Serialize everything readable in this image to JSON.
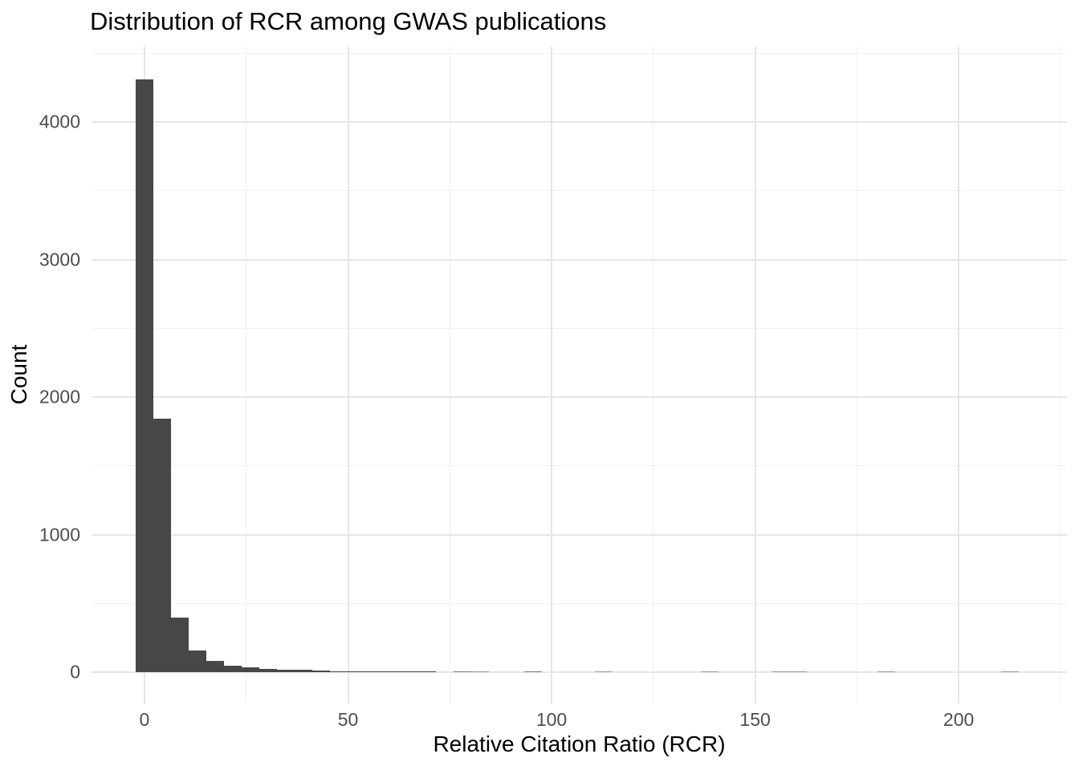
{
  "chart_data": {
    "type": "bar",
    "variant": "histogram",
    "title": "Distribution of RCR among GWAS publications",
    "xlabel": "Relative Citation Ratio (RCR)",
    "ylabel": "Count",
    "legend": "none",
    "grid": true,
    "bin_width": 4.34,
    "bins": [
      {
        "x": 0,
        "count": 4310
      },
      {
        "x": 4.34,
        "count": 1845
      },
      {
        "x": 8.68,
        "count": 400
      },
      {
        "x": 13.02,
        "count": 160
      },
      {
        "x": 17.36,
        "count": 80
      },
      {
        "x": 21.7,
        "count": 45
      },
      {
        "x": 26.04,
        "count": 33
      },
      {
        "x": 30.38,
        "count": 25
      },
      {
        "x": 34.72,
        "count": 20
      },
      {
        "x": 39.06,
        "count": 16
      },
      {
        "x": 43.4,
        "count": 12
      },
      {
        "x": 47.74,
        "count": 9
      },
      {
        "x": 52.08,
        "count": 7
      },
      {
        "x": 56.42,
        "count": 6
      },
      {
        "x": 60.76,
        "count": 5
      },
      {
        "x": 65.1,
        "count": 4
      },
      {
        "x": 69.44,
        "count": 3
      },
      {
        "x": 78.12,
        "count": 2
      },
      {
        "x": 82.46,
        "count": 1
      },
      {
        "x": 95.48,
        "count": 2
      },
      {
        "x": 112.84,
        "count": 1
      },
      {
        "x": 138.88,
        "count": 1
      },
      {
        "x": 156.24,
        "count": 1
      },
      {
        "x": 160.58,
        "count": 1
      },
      {
        "x": 182.28,
        "count": 1
      },
      {
        "x": 212.66,
        "count": 1
      }
    ],
    "x_major_ticks": [
      0,
      50,
      100,
      150,
      200
    ],
    "x_minor_ticks": [
      25,
      75,
      125,
      175,
      225
    ],
    "y_major_ticks": [
      0,
      1000,
      2000,
      3000,
      4000
    ],
    "y_minor_ticks": [
      500,
      1500,
      2500,
      3500,
      4500
    ],
    "xlim": [
      -13.0,
      226.6
    ],
    "ylim": [
      -227,
      4548
    ],
    "colors": {
      "bar": "#474747",
      "grid_major": "#E6E6E6",
      "grid_minor": "#F1F1F1",
      "axis_text": "#4D4D4D",
      "title_text": "#000000",
      "background": "#FFFFFF"
    }
  }
}
